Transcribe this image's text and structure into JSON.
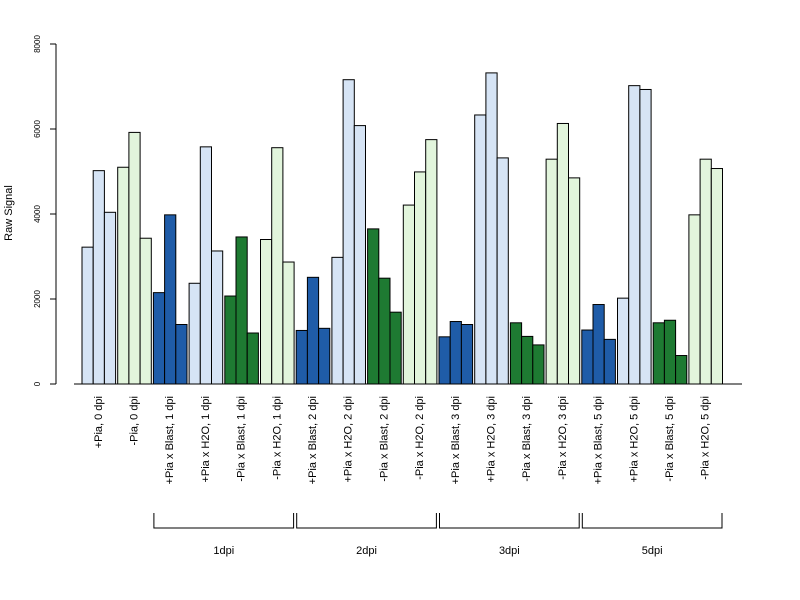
{
  "chart_data": {
    "type": "bar",
    "ylabel": "Raw Signal",
    "ylim": [
      0,
      8000
    ],
    "yticks": [
      0,
      2000,
      4000,
      6000,
      8000
    ],
    "grid": false,
    "legend": "none",
    "colors": {
      "pia_plus_dark": "#1f5ca8",
      "pia_plus_light": "#d6e4f5",
      "pia_minus_dark": "#1e7a32",
      "pia_minus_light": "#e2f5dc"
    },
    "categories": [
      {
        "label": "+Pia, 0 dpi",
        "color": "#d6e4f5",
        "values": [
          3220,
          5020,
          4040
        ]
      },
      {
        "label": "-Pia, 0 dpi",
        "color": "#e2f5dc",
        "values": [
          5100,
          5920,
          3430
        ]
      },
      {
        "label": "+Pia x Blast, 1 dpi",
        "color": "#1f5ca8",
        "values": [
          2150,
          3980,
          1400
        ]
      },
      {
        "label": "+Pia x H2O, 1 dpi",
        "color": "#d6e4f5",
        "values": [
          2370,
          5580,
          3130
        ]
      },
      {
        "label": "-Pia x Blast, 1 dpi",
        "color": "#1e7a32",
        "values": [
          2070,
          3460,
          1200
        ]
      },
      {
        "label": "-Pia x H2O, 1 dpi",
        "color": "#e2f5dc",
        "values": [
          3400,
          5560,
          2870
        ]
      },
      {
        "label": "+Pia x Blast, 2 dpi",
        "color": "#1f5ca8",
        "values": [
          1260,
          2510,
          1310
        ]
      },
      {
        "label": "+Pia x H2O, 2 dpi",
        "color": "#d6e4f5",
        "values": [
          2980,
          7160,
          6080
        ]
      },
      {
        "label": "-Pia x Blast, 2 dpi",
        "color": "#1e7a32",
        "values": [
          3650,
          2490,
          1690
        ]
      },
      {
        "label": "-Pia x H2O, 2 dpi",
        "color": "#e2f5dc",
        "values": [
          4210,
          4990,
          5750
        ]
      },
      {
        "label": "+Pia x Blast, 3 dpi",
        "color": "#1f5ca8",
        "values": [
          1110,
          1470,
          1400
        ]
      },
      {
        "label": "+Pia x H2O, 3 dpi",
        "color": "#d6e4f5",
        "values": [
          6330,
          7320,
          5320
        ]
      },
      {
        "label": "-Pia x Blast, 3 dpi",
        "color": "#1e7a32",
        "values": [
          1440,
          1120,
          920
        ]
      },
      {
        "label": "-Pia x H2O, 3 dpi",
        "color": "#e2f5dc",
        "values": [
          5290,
          6130,
          4850
        ]
      },
      {
        "label": "+Pia x Blast, 5 dpi",
        "color": "#1f5ca8",
        "values": [
          1270,
          1870,
          1050
        ]
      },
      {
        "label": "+Pia x H2O, 5 dpi",
        "color": "#d6e4f5",
        "values": [
          2020,
          7020,
          6930
        ]
      },
      {
        "label": "-Pia x Blast, 5 dpi",
        "color": "#1e7a32",
        "values": [
          1440,
          1500,
          670
        ]
      },
      {
        "label": "-Pia x H2O, 5 dpi",
        "color": "#e2f5dc",
        "values": [
          3980,
          5290,
          5070
        ]
      }
    ],
    "groups": [
      {
        "label": "1dpi",
        "span": [
          2,
          5
        ]
      },
      {
        "label": "2dpi",
        "span": [
          6,
          9
        ]
      },
      {
        "label": "3dpi",
        "span": [
          10,
          13
        ]
      },
      {
        "label": "5dpi",
        "span": [
          14,
          17
        ]
      }
    ]
  }
}
